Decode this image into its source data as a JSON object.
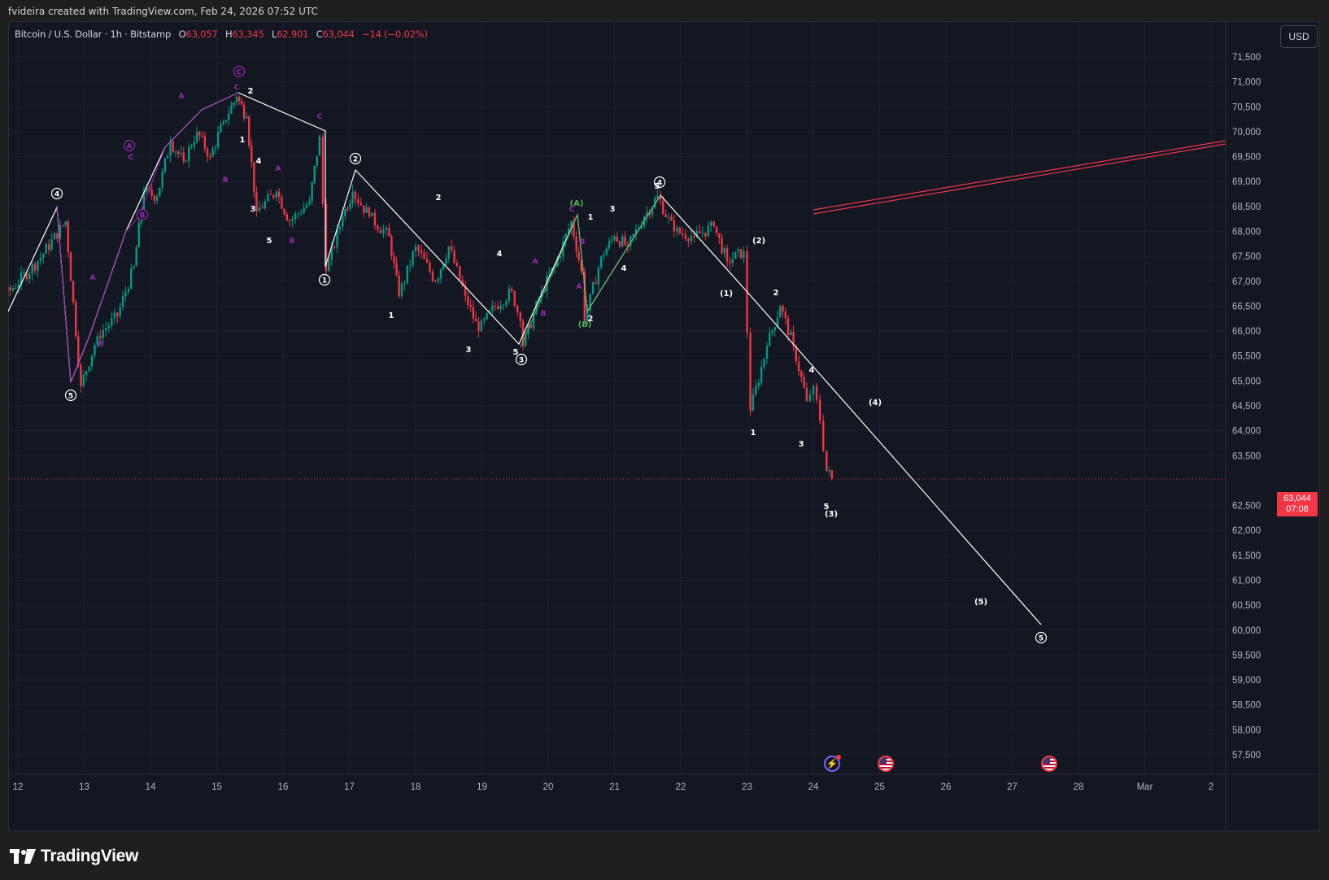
{
  "header": {
    "text": "fvideira created with TradingView.com, Feb 24, 2026 07:52 UTC"
  },
  "legend": {
    "symbol": "Bitcoin / U.S. Dollar · 1h · Bitstamp",
    "o_key": "O",
    "o_val": "63,057",
    "h_key": "H",
    "h_val": "63,345",
    "l_key": "L",
    "l_val": "62,901",
    "c_key": "C",
    "c_val": "63,044",
    "change": "−14 (−0.02%)"
  },
  "currency_button": "USD",
  "price_tag": {
    "price": "63,044",
    "countdown": "07:08"
  },
  "footer": {
    "brand": "TradingView"
  },
  "colors": {
    "background": "#131722",
    "up": "#089981",
    "down": "#f23645",
    "wave_white": "#ffffff",
    "wave_purple": "#9c27b0",
    "wave_green": "#4caf50",
    "trendline": "#f23645"
  },
  "chart_data": {
    "type": "line",
    "series": [
      {
        "x": [
          "Feb 11 22:00",
          "Feb 12 17:00",
          "Feb 12 23:00",
          "Feb 13 17:00",
          "Feb 14 00:00",
          "Feb 14 10:00",
          "Feb 14 20:00",
          "Feb 15 08:00",
          "Feb 15 14:00",
          "Feb 15 20:00",
          "Feb 16 04:00",
          "Feb 16 12:00",
          "Feb 16 18:00",
          "Feb 17 00:00",
          "Feb 17 05:00",
          "Feb 17 12:00",
          "Feb 18 00:00",
          "Feb 18 12:00",
          "Feb 18 18:00",
          "Feb 19 06:00",
          "Feb 19 15:00",
          "Feb 20 00:00",
          "Feb 20 08:00",
          "Feb 20 12:00",
          "Feb 20 16:00",
          "Feb 21 00:00",
          "Feb 21 08:00",
          "Feb 21 18:00",
          "Feb 22 04:00",
          "Feb 22 14:00",
          "Feb 22 20:00",
          "Feb 23 00:00",
          "Feb 23 04:00",
          "Feb 23 08:00",
          "Feb 23 12:00",
          "Feb 23 18:00",
          "Feb 24 00:00",
          "Feb 24 04:00",
          "Feb 24 06:00",
          "Feb 24 07:00"
        ],
        "y": [
          66800,
          68200,
          64900,
          66200,
          68800,
          70000,
          69700,
          70600,
          70400,
          68300,
          68600,
          69200,
          67100,
          68000,
          68400,
          67800,
          67000,
          66700,
          66500,
          66200,
          66000,
          66600,
          67700,
          67400,
          66000,
          66800,
          67700,
          68500,
          68100,
          67900,
          67400,
          67600,
          64900,
          65600,
          66200,
          65600,
          64800,
          64100,
          63200,
          63044
        ]
      }
    ],
    "ohlc_last": {
      "open": 63057,
      "high": 63345,
      "low": 62901,
      "close": 63044,
      "change": -14,
      "change_pct": -0.02
    },
    "y_ticks": [
      "71,500",
      "71,000",
      "70,500",
      "70,000",
      "69,500",
      "69,000",
      "68,500",
      "68,000",
      "67,500",
      "67,000",
      "66,500",
      "66,000",
      "65,500",
      "65,000",
      "64,500",
      "64,000",
      "63,500",
      "62,500",
      "62,000",
      "61,500",
      "61,000",
      "60,500",
      "60,000",
      "59,500",
      "59,000",
      "58,500",
      "58,000",
      "57,500"
    ],
    "x_ticks": [
      "12",
      "13",
      "14",
      "15",
      "16",
      "17",
      "18",
      "19",
      "20",
      "21",
      "22",
      "23",
      "24",
      "25",
      "26",
      "27",
      "28",
      "Mar",
      "2"
    ],
    "ylim": [
      57300,
      71800
    ],
    "last_price": 63044,
    "wave_labels": {
      "major": [
        "④",
        "⑤",
        "①",
        "②",
        "③",
        "④",
        "⑤"
      ],
      "intermediate": [
        "(A)",
        "(B)",
        "(1)",
        "(2)",
        "(3)",
        "(4)",
        "(5)"
      ],
      "minor": [
        "1",
        "2",
        "3",
        "4",
        "5"
      ],
      "correction": [
        "Ⓐ",
        "Ⓑ",
        "Ⓒ",
        "A",
        "B",
        "C"
      ]
    },
    "projection": {
      "from_x": "Feb 23 08:00",
      "from_y": 66600,
      "to_x": "Feb 27 10:00",
      "to_y": 60100
    }
  }
}
